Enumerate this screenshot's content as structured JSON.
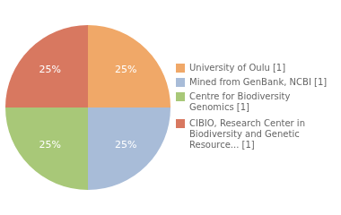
{
  "chart_data": {
    "type": "pie",
    "categories": [
      "University of Oulu [1]",
      "Mined from GenBank, NCBI [1]",
      "Centre for Biodiversity\nGenomics [1]",
      "CIBIO, Research Center in\nBiodiversity and Genetic\nResource... [1]"
    ],
    "values": [
      25,
      25,
      25,
      25
    ],
    "value_labels": [
      "25%",
      "25%",
      "25%",
      "25%"
    ],
    "colors": [
      "#f0a868",
      "#a8bcd8",
      "#a8c878",
      "#d87860"
    ],
    "data_labels": true,
    "legend": "right"
  }
}
